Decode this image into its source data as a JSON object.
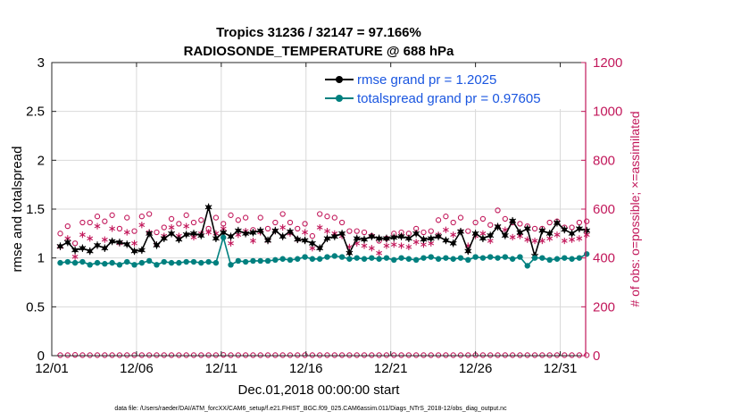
{
  "colors": {
    "rmse": "#000000",
    "spread": "#00807f",
    "obs": "#c2185b",
    "legend_text": "#1a56e0",
    "grid": "#d9d9d9"
  },
  "chart_data": {
    "type": "line",
    "title": "Tropics 31236 / 32147 = 97.166%",
    "subtitle": "RADIOSONDE_TEMPERATURE @ 688 hPa",
    "xlabel": "Dec.01,2018 00:00:00 start",
    "ylabel": "rmse and totalspread",
    "y2label": "# of obs: o=possible; ×=assimilated",
    "xlim": [
      0,
      31.5
    ],
    "ylim": [
      0,
      3
    ],
    "y2lim": [
      0,
      1200
    ],
    "grid": true,
    "legend_position": "top-right",
    "x_ticks": [
      {
        "x": 0,
        "label": "12/01"
      },
      {
        "x": 5,
        "label": "12/06"
      },
      {
        "x": 10,
        "label": "12/11"
      },
      {
        "x": 15,
        "label": "12/16"
      },
      {
        "x": 20,
        "label": "12/21"
      },
      {
        "x": 25,
        "label": "12/26"
      },
      {
        "x": 30,
        "label": "12/31"
      }
    ],
    "y_ticks": [
      {
        "v": 0,
        "label": "0"
      },
      {
        "v": 0.5,
        "label": "0.5"
      },
      {
        "v": 1,
        "label": "1"
      },
      {
        "v": 1.5,
        "label": "1.5"
      },
      {
        "v": 2,
        "label": "2"
      },
      {
        "v": 2.5,
        "label": "2.5"
      },
      {
        "v": 3,
        "label": "3"
      }
    ],
    "y2_ticks": [
      {
        "v": 0,
        "label": "0"
      },
      {
        "v": 200,
        "label": "200"
      },
      {
        "v": 400,
        "label": "400"
      },
      {
        "v": 600,
        "label": "600"
      },
      {
        "v": 800,
        "label": "800"
      },
      {
        "v": 1000,
        "label": "1000"
      },
      {
        "v": 1200,
        "label": "1200"
      }
    ],
    "series": [
      {
        "name": "rmse",
        "legend": "rmse grand pr = 1.2025",
        "axis": "left",
        "values": [
          1.12,
          1.16,
          1.08,
          1.1,
          1.07,
          1.13,
          1.1,
          1.17,
          1.16,
          1.14,
          1.07,
          1.08,
          1.25,
          1.13,
          1.2,
          1.25,
          1.19,
          1.24,
          1.25,
          1.23,
          1.52,
          1.2,
          1.26,
          1.22,
          1.28,
          1.25,
          1.26,
          1.28,
          1.18,
          1.28,
          1.22,
          1.27,
          1.19,
          1.18,
          1.15,
          1.1,
          1.2,
          1.22,
          1.25,
          1.05,
          1.2,
          1.19,
          1.22,
          1.2,
          1.2,
          1.21,
          1.22,
          1.2,
          1.25,
          1.19,
          1.2,
          1.22,
          1.18,
          1.15,
          1.27,
          1.07,
          1.25,
          1.2,
          1.23,
          1.32,
          1.23,
          1.38,
          1.26,
          1.3,
          1.02,
          1.28,
          1.25,
          1.36,
          1.29,
          1.25,
          1.3,
          1.28
        ]
      },
      {
        "name": "totalspread",
        "legend": "totalspread grand pr = 0.97605",
        "axis": "left",
        "values": [
          0.95,
          0.96,
          0.95,
          0.96,
          0.93,
          0.95,
          0.94,
          0.95,
          0.93,
          0.96,
          0.93,
          0.95,
          0.97,
          0.93,
          0.96,
          0.95,
          0.95,
          0.96,
          0.96,
          0.95,
          0.96,
          0.95,
          1.21,
          0.93,
          0.97,
          0.96,
          0.97,
          0.97,
          0.97,
          0.98,
          0.99,
          0.98,
          0.99,
          1.01,
          0.99,
          0.99,
          1.01,
          1.02,
          1.01,
          0.99,
          1.0,
          0.99,
          1.0,
          0.99,
          1.0,
          0.98,
          1.0,
          0.99,
          0.98,
          1.0,
          1.01,
          0.99,
          1.0,
          0.99,
          1.0,
          0.98,
          1.01,
          1.0,
          1.01,
          1.0,
          1.01,
          0.99,
          1.01,
          0.92,
          1.0,
          1.0,
          0.98,
          0.99,
          1.0,
          0.99,
          1.0,
          1.04
        ]
      },
      {
        "name": "obs possible",
        "axis": "right",
        "marker": "o",
        "values": [
          500,
          530,
          460,
          545,
          545,
          570,
          550,
          575,
          520,
          565,
          510,
          570,
          580,
          505,
          525,
          560,
          540,
          575,
          545,
          555,
          520,
          565,
          540,
          575,
          555,
          565,
          515,
          565,
          520,
          545,
          580,
          545,
          520,
          540,
          490,
          580,
          570,
          565,
          545,
          510,
          510,
          505,
          490,
          470,
          480,
          500,
          505,
          500,
          520,
          505,
          510,
          555,
          570,
          545,
          565,
          510,
          545,
          560,
          535,
          595,
          560,
          545,
          540,
          530,
          520,
          520,
          545,
          550,
          525,
          525,
          545,
          550
        ]
      },
      {
        "name": "obs assimilated",
        "axis": "right",
        "marker": "*",
        "values": [
          445,
          480,
          405,
          495,
          480,
          530,
          475,
          520,
          460,
          505,
          460,
          535,
          505,
          455,
          490,
          525,
          490,
          530,
          485,
          500,
          505,
          500,
          520,
          460,
          495,
          510,
          470,
          505,
          470,
          510,
          525,
          500,
          475,
          505,
          440,
          525,
          510,
          500,
          490,
          445,
          460,
          450,
          440,
          420,
          450,
          455,
          450,
          445,
          465,
          455,
          460,
          495,
          515,
          495,
          510,
          450,
          490,
          500,
          470,
          530,
          515,
          485,
          490,
          475,
          470,
          470,
          480,
          495,
          470,
          475,
          480,
          495
        ]
      },
      {
        "name": "obs possible (bottom)",
        "axis": "right",
        "marker": "o",
        "values": [
          2,
          2,
          3,
          2,
          2,
          2,
          2,
          2,
          2,
          2,
          2,
          2,
          2,
          2,
          2,
          2,
          2,
          2,
          2,
          2,
          2,
          2,
          3,
          2,
          2,
          2,
          2,
          2,
          2,
          2,
          2,
          2,
          2,
          2,
          2,
          2,
          2,
          2,
          2,
          2,
          2,
          2,
          2,
          2,
          2,
          2,
          2,
          2,
          2,
          2,
          2,
          2,
          2,
          2,
          2,
          2,
          2,
          2,
          2,
          2,
          2,
          2,
          2,
          2,
          2,
          2,
          2,
          2,
          2,
          2,
          2,
          2
        ]
      }
    ],
    "legend": [
      {
        "label": "rmse grand pr = 1.2025"
      },
      {
        "label": "totalspread grand pr = 0.97605"
      }
    ]
  },
  "footer": "data file: /Users/raeder/DAI/ATM_forcXX/CAM6_setup/f.e21.FHIST_BGC.f09_025.CAM6assim.011/Diags_NTrS_2018-12/obs_diag_output.nc"
}
